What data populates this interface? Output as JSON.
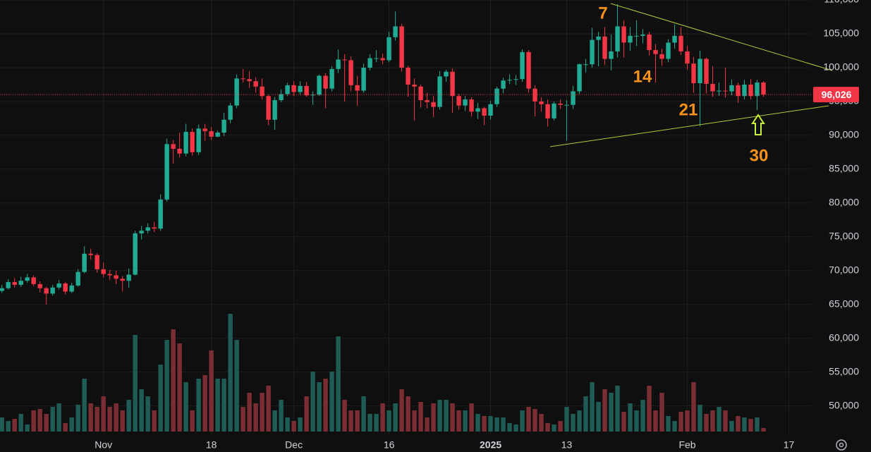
{
  "chart_data": {
    "type": "candlestick",
    "open": [
      67000,
      67400,
      68300,
      67900,
      68500,
      69000,
      68000,
      67400,
      66600,
      67500,
      68100,
      66900,
      67800,
      69800,
      72500,
      72300,
      70200,
      69500,
      69300,
      68800,
      68500,
      69400,
      75500,
      75900,
      76400,
      76200,
      80500,
      88700,
      88000,
      87300,
      90500,
      87500,
      91000,
      90600,
      89800,
      90400,
      92300,
      94400,
      98400,
      98300,
      98000,
      97200,
      95800,
      92300,
      95200,
      96100,
      97400,
      96400,
      97300,
      95900,
      96000,
      98800,
      96900,
      99800,
      101200,
      101100,
      97400,
      96600,
      100000,
      101400,
      101400,
      101100,
      104500,
      106100,
      100000,
      97500,
      97200,
      95200,
      94900,
      94200,
      98700,
      99400,
      95800,
      94400,
      95300,
      93500,
      94000,
      92900,
      94600,
      96900,
      98100,
      98200,
      98300,
      102300,
      96900,
      95000,
      94600,
      92500,
      94700,
      94500,
      94500,
      96500,
      100500,
      100500,
      104100,
      104600,
      101300,
      102400,
      106100,
      103700,
      104700,
      104700,
      104900,
      102600,
      102000,
      101300,
      103700,
      104700,
      102400,
      100600,
      97700,
      101300,
      97600,
      96500,
      96600,
      96500,
      97400,
      95800,
      97500,
      95800,
      97800
    ],
    "high": [
      67900,
      68700,
      68900,
      69100,
      69500,
      69300,
      68400,
      67600,
      67900,
      68600,
      68300,
      68200,
      70200,
      73600,
      73200,
      72600,
      71200,
      70100,
      70000,
      69200,
      70300,
      75900,
      76600,
      77000,
      77200,
      81300,
      89500,
      89300,
      90400,
      91700,
      91000,
      91600,
      91700,
      91200,
      90700,
      93300,
      94800,
      99000,
      99800,
      99500,
      98600,
      98400,
      96000,
      95700,
      96800,
      97800,
      98000,
      98000,
      97900,
      96500,
      99000,
      99200,
      100200,
      102700,
      102000,
      101700,
      98800,
      100600,
      102000,
      102600,
      102100,
      105300,
      108300,
      106500,
      100300,
      98400,
      97500,
      96300,
      95800,
      99500,
      99700,
      99900,
      96100,
      95800,
      95600,
      94800,
      94200,
      95100,
      97200,
      98500,
      99000,
      98900,
      102700,
      102600,
      97400,
      95600,
      95300,
      95000,
      95300,
      95200,
      97300,
      100600,
      101300,
      105900,
      105300,
      106000,
      104900,
      109400,
      107000,
      106000,
      107000,
      105700,
      105300,
      103500,
      102800,
      104200,
      106400,
      106000,
      103200,
      101600,
      102500,
      101500,
      100200,
      97800,
      100000,
      98200,
      97800,
      98200,
      98300,
      98200,
      98000
    ],
    "low": [
      66700,
      67200,
      67500,
      67600,
      68200,
      67700,
      66800,
      65000,
      66300,
      67200,
      66500,
      66700,
      67600,
      69600,
      71600,
      69700,
      69000,
      68600,
      68000,
      66900,
      67500,
      69300,
      74600,
      75500,
      75700,
      75900,
      80200,
      85800,
      86700,
      86900,
      87000,
      87100,
      89200,
      89300,
      89700,
      89900,
      91800,
      94000,
      97800,
      97000,
      96300,
      95300,
      91500,
      90800,
      94900,
      95800,
      95800,
      96000,
      95700,
      94500,
      95800,
      94000,
      96500,
      99200,
      95000,
      96500,
      94400,
      96300,
      99600,
      100800,
      100500,
      100800,
      104000,
      99400,
      95700,
      92200,
      94100,
      94000,
      92700,
      93800,
      97900,
      93300,
      93800,
      93600,
      92800,
      92400,
      91500,
      92300,
      94200,
      96200,
      97600,
      97400,
      97900,
      96300,
      92800,
      93500,
      91300,
      92200,
      93900,
      89200,
      93900,
      96100,
      99300,
      100000,
      100200,
      100400,
      99600,
      101500,
      101500,
      102500,
      103200,
      103600,
      101800,
      97800,
      100300,
      100800,
      102800,
      101900,
      99700,
      96300,
      91300,
      96200,
      95700,
      95800,
      95600,
      95900,
      94800,
      95300,
      95300,
      93700,
      95700
    ],
    "close": [
      67400,
      68300,
      67900,
      68500,
      69000,
      68000,
      67400,
      66600,
      67500,
      68100,
      66900,
      67800,
      69800,
      72500,
      72300,
      70200,
      69500,
      69300,
      68800,
      68500,
      69400,
      75500,
      75900,
      76400,
      76200,
      80500,
      88700,
      88000,
      87300,
      90500,
      87500,
      91000,
      90600,
      89800,
      90400,
      92300,
      94400,
      98400,
      98300,
      98000,
      97200,
      95800,
      92300,
      95200,
      96100,
      97400,
      96400,
      97300,
      95900,
      96000,
      98800,
      96900,
      99800,
      101200,
      101100,
      97400,
      96600,
      100000,
      101400,
      101400,
      101100,
      104500,
      106100,
      100000,
      97500,
      97200,
      95200,
      94900,
      94200,
      98700,
      99400,
      95800,
      94400,
      95300,
      93500,
      94000,
      92900,
      94600,
      96900,
      98100,
      98200,
      98300,
      102300,
      96900,
      95000,
      94600,
      92500,
      94700,
      94500,
      94500,
      96500,
      100500,
      100500,
      104100,
      104600,
      101300,
      102400,
      106100,
      103700,
      104700,
      104700,
      104900,
      102600,
      102000,
      101300,
      103700,
      104700,
      102400,
      100600,
      97700,
      101300,
      97600,
      96500,
      96600,
      96500,
      97400,
      95800,
      97500,
      95800,
      97800,
      96026
    ],
    "volume": [
      20,
      15,
      18,
      25,
      10,
      30,
      32,
      25,
      35,
      40,
      12,
      20,
      38,
      75,
      40,
      35,
      50,
      35,
      40,
      30,
      45,
      137,
      60,
      50,
      30,
      95,
      130,
      145,
      125,
      70,
      30,
      75,
      80,
      115,
      75,
      75,
      167,
      130,
      35,
      55,
      40,
      55,
      65,
      30,
      45,
      20,
      15,
      20,
      50,
      85,
      70,
      75,
      85,
      135,
      45,
      30,
      30,
      50,
      25,
      25,
      40,
      30,
      40,
      60,
      50,
      30,
      42,
      20,
      40,
      45,
      45,
      40,
      30,
      30,
      40,
      25,
      22,
      22,
      20,
      20,
      12,
      10,
      30,
      35,
      32,
      25,
      12,
      10,
      15,
      35,
      25,
      30,
      50,
      70,
      42,
      60,
      55,
      65,
      28,
      40,
      30,
      45,
      65,
      30,
      55,
      22,
      15,
      28,
      30,
      70,
      38,
      25,
      30,
      35,
      30,
      15,
      22,
      20,
      18,
      20,
      5
    ],
    "up_color": "#22ab94",
    "down_color": "#f23645",
    "volume_up_color": "#1f5c55",
    "volume_down_color": "#7a2e33",
    "xlim": [
      -0.3,
      127.5
    ],
    "xticks": [
      {
        "value": 16,
        "label": "Nov"
      },
      {
        "value": 33,
        "label": "18"
      },
      {
        "value": 46,
        "label": "Dec"
      },
      {
        "value": 61,
        "label": "16"
      },
      {
        "value": 77,
        "label": "2025"
      },
      {
        "value": 89,
        "label": "13"
      },
      {
        "value": 108,
        "label": "Feb"
      },
      {
        "value": 124,
        "label": "17"
      }
    ],
    "ylim": [
      46000,
      110000
    ],
    "yticks": [
      {
        "value": 50000,
        "label": "50,000"
      },
      {
        "value": 55000,
        "label": "55,000"
      },
      {
        "value": 60000,
        "label": "60,000"
      },
      {
        "value": 65000,
        "label": "65,000"
      },
      {
        "value": 70000,
        "label": "70,000"
      },
      {
        "value": 75000,
        "label": "75,000"
      },
      {
        "value": 80000,
        "label": "80,000"
      },
      {
        "value": 85000,
        "label": "85,000"
      },
      {
        "value": 90000,
        "label": "90,000"
      },
      {
        "value": 95000,
        "label": "95,000"
      },
      {
        "value": 100000,
        "label": "100,000"
      },
      {
        "value": 105000,
        "label": "105,000"
      },
      {
        "value": 110000,
        "label": "110,000"
      }
    ],
    "grid": true,
    "last_price": {
      "value": 96026,
      "label": "96,026"
    },
    "annotations": [
      "7",
      "14",
      "21",
      "30"
    ]
  }
}
